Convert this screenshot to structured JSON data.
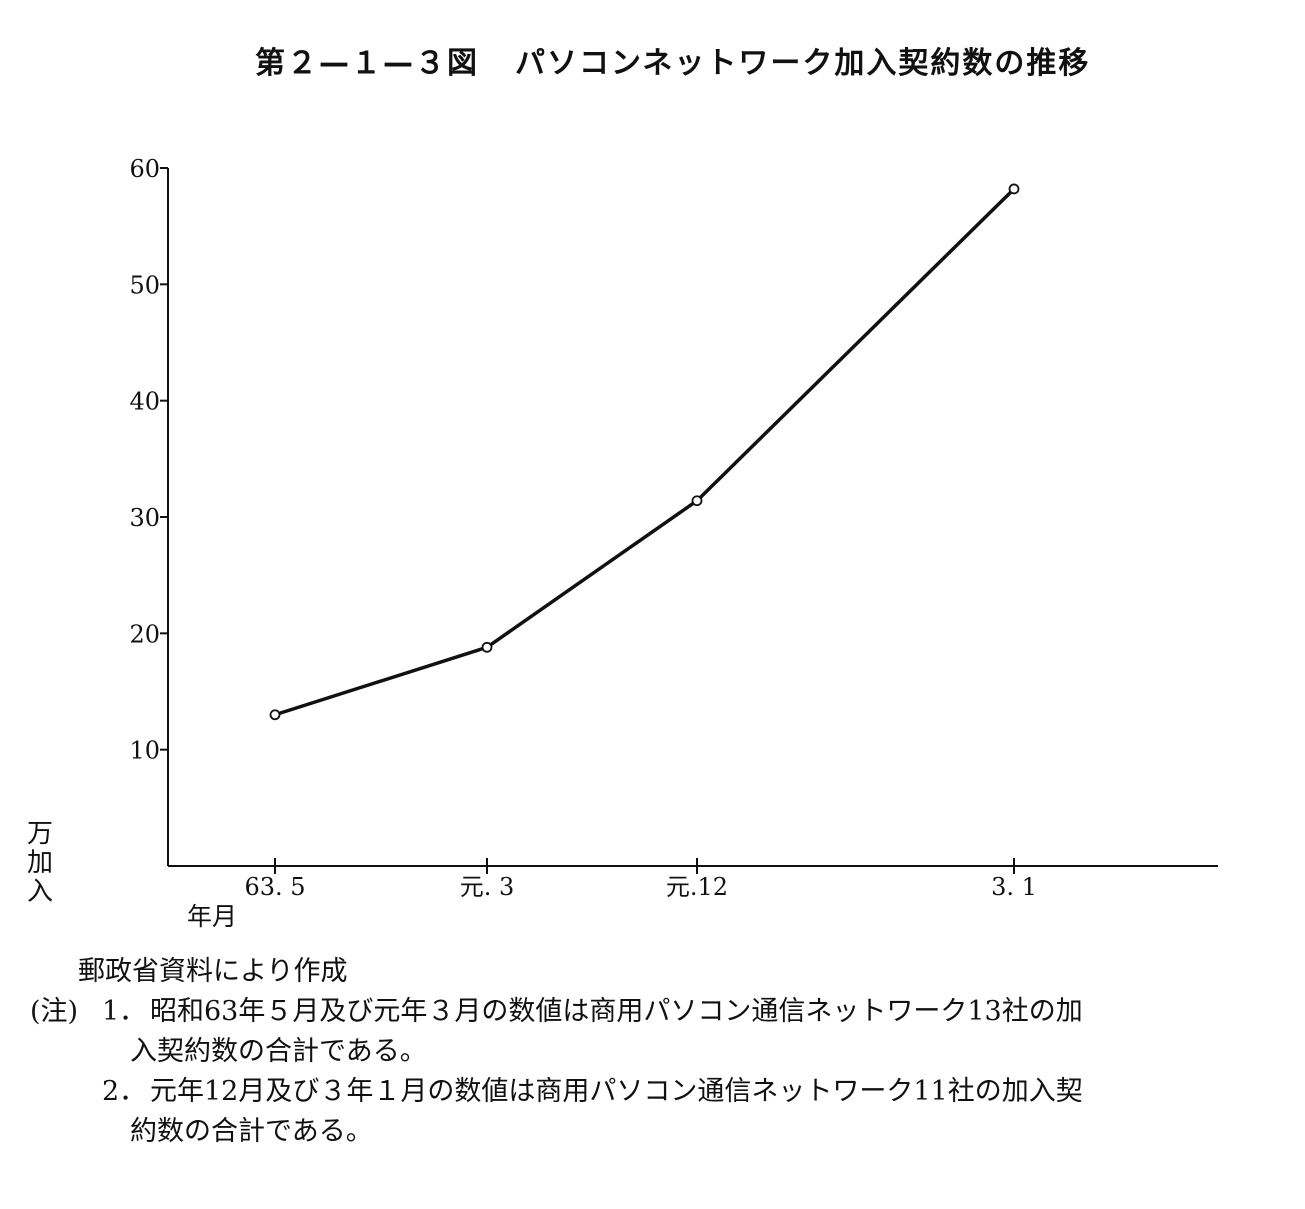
{
  "title": {
    "figure_number": "第２—１—３図",
    "text": "パソコンネットワーク加入契約数の推移"
  },
  "chart_data": {
    "type": "line",
    "title": "パソコンネットワーク加入契約数の推移",
    "ylabel": "万加入",
    "xlabel": "年月",
    "categories": [
      "63. 5",
      "元. 3",
      "元.12",
      "3. 1"
    ],
    "series": [
      {
        "values": [
          13,
          18.8,
          31.4,
          58.2
        ]
      }
    ],
    "ylim": [
      0,
      60
    ],
    "yticks": [
      10,
      20,
      30,
      40,
      50,
      60
    ],
    "grid": false,
    "markers": "open-circle",
    "color": "#111111"
  },
  "notes": {
    "source": "郵政省資料により作成",
    "prefix": "(注)",
    "items": [
      {
        "number": "1．",
        "line1": "昭和63年５月及び元年３月の数値は商用パソコン通信ネットワーク13社の加",
        "line2": "入契約数の合計である。"
      },
      {
        "number": "2．",
        "line1": "元年12月及び３年１月の数値は商用パソコン通信ネットワーク11社の加入契",
        "line2": "約数の合計である。"
      }
    ]
  }
}
